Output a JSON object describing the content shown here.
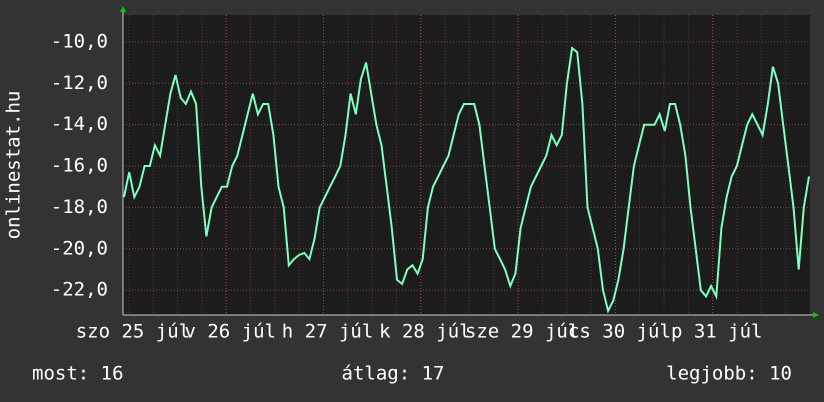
{
  "chart_data": {
    "type": "line",
    "y_label": "onlinestat.hu",
    "x_labels": [
      "szo 25 júl",
      "v 26 júl",
      "h 27 júl",
      "k 28 júl",
      "sze 29 júl",
      "cs 30 júl",
      "p 31 júl"
    ],
    "ylim": [
      -23.2,
      -8.7
    ],
    "yticks": [
      {
        "value": -10,
        "label": "-10,0"
      },
      {
        "value": -12,
        "label": "-12,0"
      },
      {
        "value": -14,
        "label": "-14,0"
      },
      {
        "value": -16,
        "label": "-16,0"
      },
      {
        "value": -18,
        "label": "-18,0"
      },
      {
        "value": -20,
        "label": "-20,0"
      },
      {
        "value": -22,
        "label": "-22,0"
      }
    ],
    "grid": true,
    "color": "#7dffc0",
    "values": [
      -17.5,
      -16.3,
      -17.5,
      -17,
      -16,
      -16,
      -15,
      -15.5,
      -14,
      -12.5,
      -11.6,
      -12.7,
      -13,
      -12.4,
      -13,
      -17,
      -19.4,
      -18,
      -17.5,
      -17,
      -17,
      -16,
      -15.5,
      -14.5,
      -13.5,
      -12.5,
      -13.5,
      -13,
      -13,
      -14.5,
      -17,
      -18,
      -20.8,
      -20.5,
      -20.3,
      -20.2,
      -20.5,
      -19.5,
      -18,
      -17.5,
      -17,
      -16.5,
      -16,
      -14.5,
      -12.5,
      -13.5,
      -11.8,
      -11,
      -12.5,
      -14,
      -15,
      -17,
      -19,
      -21.5,
      -21.7,
      -21,
      -20.8,
      -21.2,
      -20.5,
      -18,
      -17,
      -16.5,
      -16,
      -15.5,
      -14.5,
      -13.5,
      -13,
      -13,
      -13,
      -14,
      -16,
      -18,
      -20,
      -20.5,
      -21,
      -21.8,
      -21.2,
      -19,
      -18,
      -17,
      -16.5,
      -16,
      -15.5,
      -14.5,
      -15,
      -14.5,
      -12,
      -10.3,
      -10.5,
      -13,
      -18,
      -19,
      -20,
      -22,
      -23,
      -22.5,
      -21.5,
      -20,
      -18,
      -16,
      -15,
      -14,
      -14,
      -14,
      -13.5,
      -14.3,
      -13,
      -13,
      -14,
      -15.5,
      -18,
      -20,
      -22,
      -22.3,
      -21.8,
      -22.3,
      -19,
      -17.5,
      -16.5,
      -16,
      -15,
      -14,
      -13.5,
      -14,
      -14.5,
      -13,
      -11.2,
      -12,
      -14,
      -16,
      -18,
      -21,
      -18,
      -16.5
    ]
  },
  "footer": [
    "most: 16",
    "átlag: 17",
    "legjobb: 10"
  ]
}
